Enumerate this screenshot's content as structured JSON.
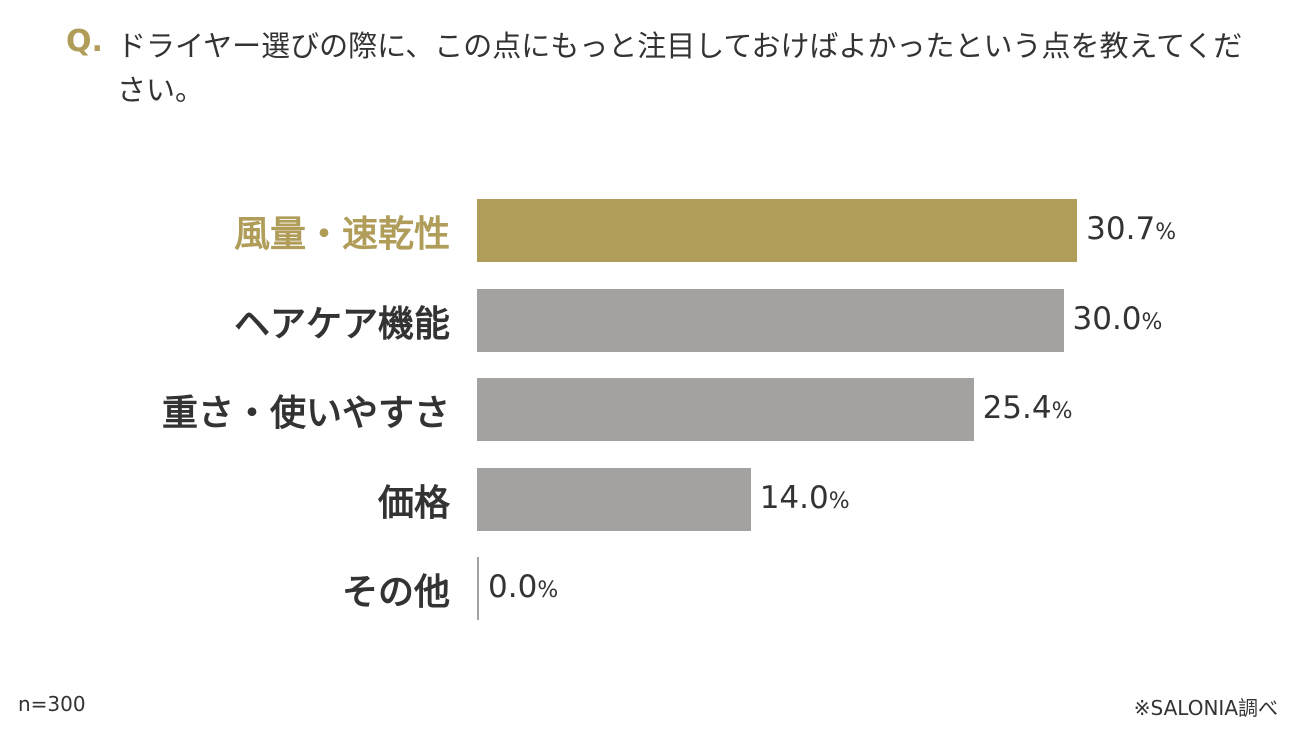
{
  "question": {
    "prefix": "Q.",
    "text": "ドライヤー選びの際に、この点にもっと注目しておけばよかったという点を教えてください。"
  },
  "chart_data": {
    "type": "bar",
    "orientation": "horizontal",
    "categories": [
      "風量・速乾性",
      "ヘアケア機能",
      "重さ・使いやすさ",
      "価格",
      "その他"
    ],
    "values": [
      30.7,
      30.0,
      25.4,
      14.0,
      0.0
    ],
    "value_labels": [
      "30.7",
      "30.0",
      "25.4",
      "14.0",
      "0.0"
    ],
    "unit": "%",
    "highlight_index": 0,
    "colors": {
      "highlight": "#b09d59",
      "default": "#a3a2a1",
      "text": "#333333"
    }
  },
  "footer": {
    "sample": "n=300",
    "source": "※SALONIA調べ"
  }
}
